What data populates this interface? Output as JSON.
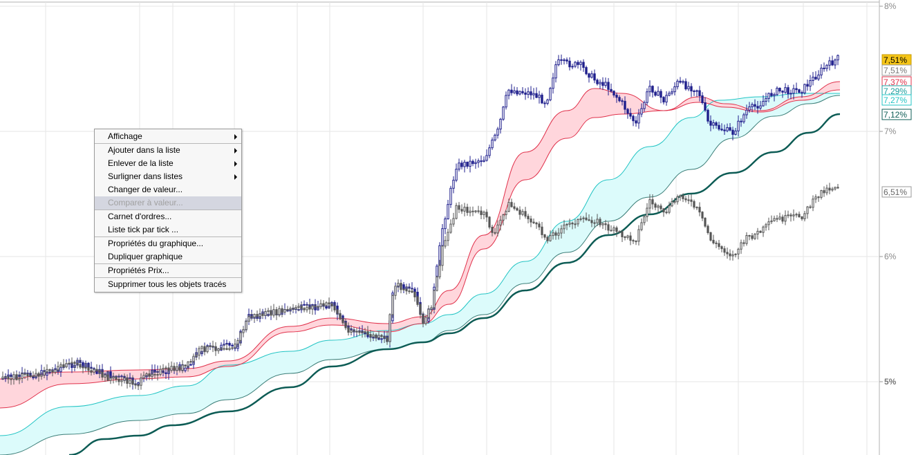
{
  "menu": {
    "groups": [
      [
        {
          "label": "Affichage",
          "submenu": true,
          "disabled": false
        }
      ],
      [
        {
          "label": "Ajouter dans la liste",
          "submenu": true,
          "disabled": false
        },
        {
          "label": "Enlever de la liste",
          "submenu": true,
          "disabled": false
        },
        {
          "label": "Surligner dans listes",
          "submenu": true,
          "disabled": false
        },
        {
          "label": "Changer de valeur...",
          "submenu": false,
          "disabled": false
        },
        {
          "label": "Comparer à valeur...",
          "submenu": false,
          "disabled": true
        }
      ],
      [
        {
          "label": "Carnet d'ordres...",
          "submenu": false,
          "disabled": false
        },
        {
          "label": "Liste tick par tick ...",
          "submenu": false,
          "disabled": false
        }
      ],
      [
        {
          "label": "Propriétés du graphique...",
          "submenu": false,
          "disabled": false
        },
        {
          "label": "Dupliquer graphique",
          "submenu": false,
          "disabled": false
        }
      ],
      [
        {
          "label": "Propriétés Prix...",
          "submenu": false,
          "disabled": false
        }
      ],
      [
        {
          "label": "Supprimer tous les objets tracés",
          "submenu": false,
          "disabled": false
        }
      ]
    ]
  },
  "axis": {
    "labels": [
      {
        "text": "8%",
        "value": 8.0
      },
      {
        "text": "7%",
        "value": 7.0
      },
      {
        "text": "6%",
        "value": 6.0
      },
      {
        "text": "5%",
        "value": 5.0
      }
    ]
  },
  "price_tags": [
    {
      "text": "7,51%",
      "value": 7.51,
      "bg": "#f5c518",
      "fg": "#000000",
      "border": "#c79a00"
    },
    {
      "text": "7,51%",
      "value": 7.51,
      "bg": "#ffffff",
      "fg": "#777777",
      "border": "#999999"
    },
    {
      "text": "7,37%",
      "value": 7.37,
      "bg": "#ffffff",
      "fg": "#e0304a",
      "border": "#e0304a"
    },
    {
      "text": "7,29%",
      "value": 7.29,
      "bg": "#ffffff",
      "fg": "#1a9e9e",
      "border": "#1a9e9e"
    },
    {
      "text": "7,27%",
      "value": 7.27,
      "bg": "#ffffff",
      "fg": "#22c4c4",
      "border": "#22c4c4"
    },
    {
      "text": "7,12%",
      "value": 7.12,
      "bg": "#ffffff",
      "fg": "#0d5c55",
      "border": "#0d5c55"
    },
    {
      "text": "6,51%",
      "value": 6.51,
      "bg": "#ffffff",
      "fg": "#666666",
      "border": "#999999"
    }
  ],
  "colors": {
    "candle_up": "#1e1e8c",
    "candle_down": "#1e1e8c",
    "compare_candles": "#555555",
    "ma_fast": "#e0304a",
    "ma_fast_fill": "#ffd6dc",
    "ma_mid": "#22c4c4",
    "ma_mid_fill": "#dcfbfb",
    "ma_slow": "#0d5c55",
    "grid": "#e6e6e6"
  }
}
